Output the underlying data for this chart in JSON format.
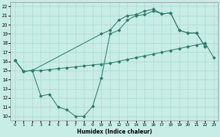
{
  "xlabel": "Humidex (Indice chaleur)",
  "xlim": [
    -0.5,
    23.5
  ],
  "ylim": [
    9.5,
    22.5
  ],
  "xticks": [
    0,
    1,
    2,
    3,
    4,
    5,
    6,
    7,
    8,
    9,
    10,
    11,
    12,
    13,
    14,
    15,
    16,
    17,
    18,
    19,
    20,
    21,
    22,
    23
  ],
  "yticks": [
    10,
    11,
    12,
    13,
    14,
    15,
    16,
    17,
    18,
    19,
    20,
    21,
    22
  ],
  "bg_color": "#c8ece6",
  "line_color": "#2e7d6e",
  "grid_color": "#a8d8d0",
  "line_diagonal_x": [
    0,
    1,
    2,
    3,
    4,
    5,
    6,
    7,
    8,
    9,
    10,
    11,
    12,
    13,
    14,
    15,
    16,
    17,
    18,
    19,
    20,
    21,
    22,
    23
  ],
  "line_diagonal_y": [
    16.1,
    14.9,
    15.0,
    15.0,
    15.1,
    15.2,
    15.3,
    15.4,
    15.5,
    15.6,
    15.7,
    15.8,
    16.0,
    16.2,
    16.4,
    16.6,
    16.8,
    17.0,
    17.2,
    17.4,
    17.6,
    17.8,
    18.0,
    16.4
  ],
  "line_top_x": [
    0,
    1,
    2,
    10,
    11,
    12,
    13,
    14,
    15,
    16,
    17,
    18,
    19,
    20,
    21,
    22
  ],
  "line_top_y": [
    16.1,
    14.9,
    15.0,
    19.0,
    19.4,
    20.5,
    21.0,
    21.1,
    21.5,
    21.7,
    21.2,
    21.3,
    19.4,
    19.1,
    19.1,
    17.6
  ],
  "line_bottom_x": [
    0,
    1,
    2,
    3,
    4,
    5,
    6,
    7,
    8,
    9,
    10,
    11,
    12,
    13,
    14,
    15,
    16,
    17,
    18,
    19,
    20,
    21,
    22
  ],
  "line_bottom_y": [
    16.1,
    14.9,
    15.0,
    12.2,
    12.4,
    11.0,
    10.7,
    10.0,
    10.0,
    11.1,
    14.2,
    19.0,
    19.4,
    20.5,
    21.0,
    21.1,
    21.5,
    21.2,
    21.3,
    19.4,
    19.1,
    19.1,
    17.6
  ]
}
